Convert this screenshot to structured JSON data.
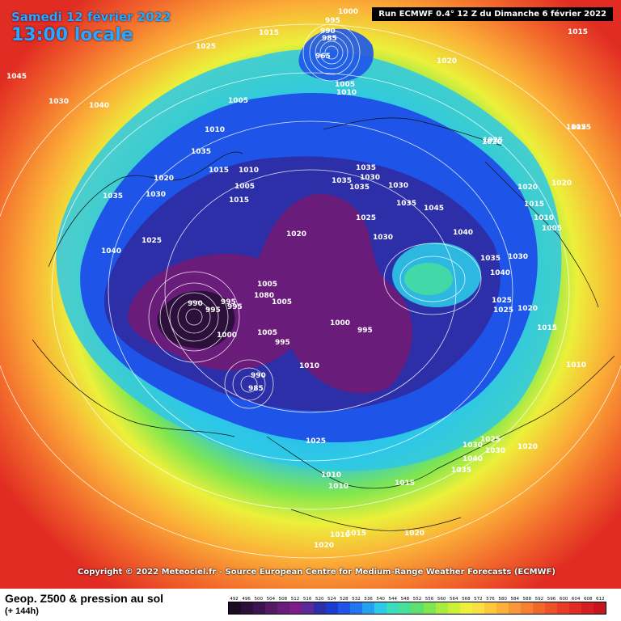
{
  "header": {
    "valid_date": "Samedi 12 février 2022",
    "valid_time": "13:00 locale",
    "run_info": "Run ECMWF 0.4° 12 Z du Dimanche 6 février 2022"
  },
  "copyright": "Copyright © 2022 Meteociel.fr - Source European Centre for Medium-Range Weather Forecasts (ECMWF)",
  "footer": {
    "title": "Geop. Z500 & pression au sol",
    "step": "(+ 144h)"
  },
  "legend": {
    "values": [
      "492",
      "496",
      "500",
      "504",
      "508",
      "512",
      "516",
      "520",
      "524",
      "528",
      "532",
      "536",
      "540",
      "544",
      "548",
      "552",
      "556",
      "560",
      "564",
      "568",
      "572",
      "576",
      "580",
      "584",
      "588",
      "592",
      "596",
      "600",
      "604",
      "608",
      "612"
    ],
    "colors": [
      "#1a0a22",
      "#2c0f3a",
      "#3e1450",
      "#551a66",
      "#6a1c7a",
      "#7b1e8c",
      "#5a2a9a",
      "#2c2fa8",
      "#1c3cd0",
      "#1e55e8",
      "#1f78f0",
      "#24a0f0",
      "#2ec8e8",
      "#3adcc0",
      "#48e098",
      "#5ce070",
      "#7ee650",
      "#a8ec40",
      "#ccf038",
      "#ecf03a",
      "#f8e040",
      "#fcc83c",
      "#fbb038",
      "#f99834",
      "#f58030",
      "#f2682c",
      "#ee5028",
      "#e83a24",
      "#e02c22",
      "#d41e20",
      "#c8141c"
    ]
  },
  "pressure_labels": [
    "1000",
    "995",
    "990",
    "985",
    "965",
    "1005",
    "1010",
    "1015",
    "1020",
    "1025",
    "1030",
    "1035",
    "1040",
    "1045",
    "1015",
    "1025",
    "1020",
    "1005",
    "1010",
    "1015",
    "1010",
    "1005",
    "1020",
    "1015",
    "1030",
    "1035",
    "1025",
    "1040",
    "990",
    "995",
    "995",
    "995",
    "1080",
    "1005",
    "1005",
    "1000",
    "1005",
    "995",
    "1000",
    "995",
    "990",
    "985",
    "1010",
    "1020",
    "1030",
    "1025",
    "1035",
    "1030",
    "1030",
    "1025",
    "1020",
    "1020",
    "1015",
    "1010",
    "1005",
    "1015",
    "1035",
    "1035",
    "1035",
    "1045",
    "1040",
    "1035",
    "1040",
    "1030",
    "1025",
    "1025",
    "1020",
    "1015",
    "1010",
    "1030",
    "1040",
    "1035",
    "1030",
    "1025",
    "1020",
    "1025",
    "1010",
    "1010",
    "1015",
    "1020",
    "1010",
    "1015",
    "1020"
  ]
}
